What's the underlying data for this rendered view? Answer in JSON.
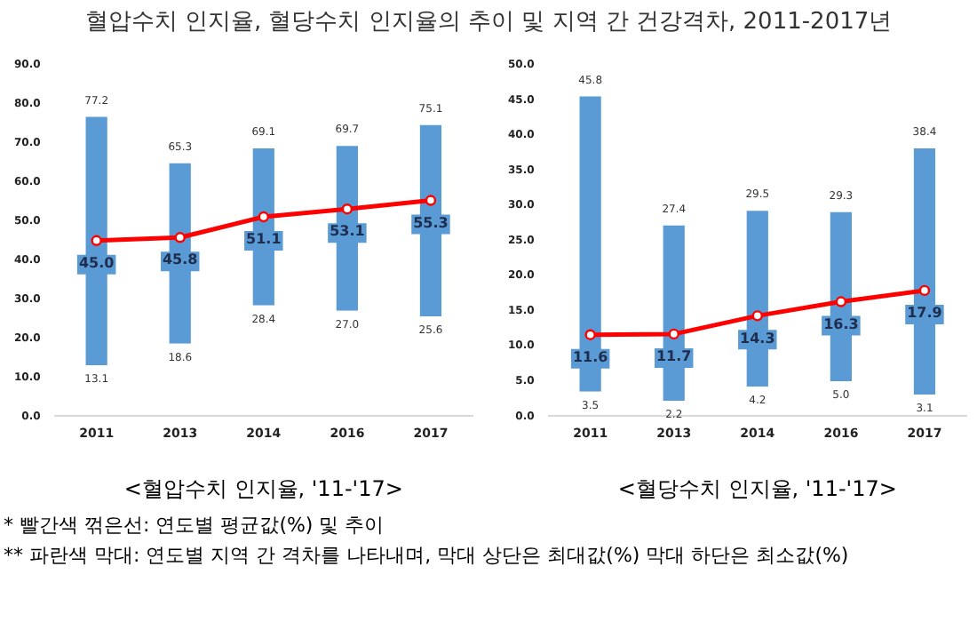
{
  "chart_data": [
    {
      "type": "bar",
      "title": "혈압수치 인지율, 혈당수치 인지율의 추이 및 지역 간 건강격차, 2011-2017년",
      "xlabel": "<혈압수치 인지율, '11-'17>",
      "categories": [
        "2011",
        "2013",
        "2014",
        "2016",
        "2017"
      ],
      "series": [
        {
          "color": "#5b9bd5",
          "values": [
            64.1,
            46.7,
            40.7,
            42.7,
            49.5
          ],
          "base": [
            13.1,
            18.6,
            28.4,
            27.0,
            25.6
          ]
        },
        {
          "type": "line",
          "color": "#ff0000",
          "values": [
            45.0,
            45.8,
            51.1,
            53.1,
            55.3
          ],
          "value_labels": [
            "45.0",
            "45.8",
            "51.1",
            "53.1",
            "55.3"
          ]
        }
      ],
      "ylim": [
        0,
        90
      ],
      "yticks": [
        {
          "value": 0,
          "label": "0.0"
        },
        {
          "value": 10,
          "label": "10.0"
        },
        {
          "value": 20,
          "label": "20.0"
        },
        {
          "value": 30,
          "label": "30.0"
        },
        {
          "value": 40,
          "label": "40.0"
        },
        {
          "value": 50,
          "label": "50.0"
        },
        {
          "value": 60,
          "label": "60.0"
        },
        {
          "value": 70,
          "label": "70.0"
        },
        {
          "value": 80,
          "label": "80.0"
        },
        {
          "value": 90,
          "label": "90.0"
        }
      ],
      "grid": false,
      "legend": false,
      "marker": "circle",
      "annotations": [
        {
          "text": "77.2",
          "x": "2011",
          "y": 77.2
        },
        {
          "text": "65.3",
          "x": "2013",
          "y": 65.3
        },
        {
          "text": "69.1",
          "x": "2014",
          "y": 69.1
        },
        {
          "text": "69.7",
          "x": "2016",
          "y": 69.7
        },
        {
          "text": "75.1",
          "x": "2017",
          "y": 75.1
        },
        {
          "text": "13.1",
          "x": "2011",
          "y": 13.1
        },
        {
          "text": "18.6",
          "x": "2013",
          "y": 18.6
        },
        {
          "text": "28.4",
          "x": "2014",
          "y": 28.4
        },
        {
          "text": "27.0",
          "x": "2016",
          "y": 27.0
        },
        {
          "text": "25.6",
          "x": "2017",
          "y": 25.6
        },
        "* 빨간색 꺾은선: 연도별 평균값(%) 및 추이",
        "** 파란색 막대: 연도별 지역 간 격차를 나타내며, 막대 상단은 최대값(%) 막대 하단은 최소값(%)"
      ]
    },
    {
      "type": "bar",
      "xlabel": "<혈당수치 인지율, '11-'17>",
      "categories": [
        "2011",
        "2013",
        "2014",
        "2016",
        "2017"
      ],
      "series": [
        {
          "color": "#5b9bd5",
          "values": [
            42.3,
            25.2,
            25.3,
            24.3,
            35.3
          ],
          "base": [
            3.5,
            2.2,
            4.2,
            5.0,
            3.1
          ]
        },
        {
          "type": "line",
          "color": "#ff0000",
          "values": [
            11.6,
            11.7,
            14.3,
            16.3,
            17.9
          ],
          "value_labels": [
            "11.6",
            "11.7",
            "14.3",
            "16.3",
            "17.9"
          ]
        }
      ],
      "ylim": [
        0,
        50
      ],
      "yticks": [
        {
          "value": 0,
          "label": "0.0"
        },
        {
          "value": 5,
          "label": "5.0"
        },
        {
          "value": 10,
          "label": "10.0"
        },
        {
          "value": 15,
          "label": "15.0"
        },
        {
          "value": 20,
          "label": "20.0"
        },
        {
          "value": 25,
          "label": "25.0"
        },
        {
          "value": 30,
          "label": "30.0"
        },
        {
          "value": 35,
          "label": "35.0"
        },
        {
          "value": 40,
          "label": "40.0"
        },
        {
          "value": 45,
          "label": "45.0"
        },
        {
          "value": 50,
          "label": "50.0"
        }
      ],
      "grid": false,
      "legend": false,
      "marker": "circle",
      "annotations": [
        {
          "text": "45.8",
          "x": "2011",
          "y": 45.8
        },
        {
          "text": "27.4",
          "x": "2013",
          "y": 27.4
        },
        {
          "text": "29.5",
          "x": "2014",
          "y": 29.5
        },
        {
          "text": "29.3",
          "x": "2016",
          "y": 29.3
        },
        {
          "text": "38.4",
          "x": "2017",
          "y": 38.4
        },
        {
          "text": "3.5",
          "x": "2011",
          "y": 3.5
        },
        {
          "text": "2.2",
          "x": "2013",
          "y": 2.2
        },
        {
          "text": "4.2",
          "x": "2014",
          "y": 4.2
        },
        {
          "text": "5.0",
          "x": "2016",
          "y": 5.0
        },
        {
          "text": "3.1",
          "x": "2017",
          "y": 3.1
        }
      ]
    }
  ]
}
